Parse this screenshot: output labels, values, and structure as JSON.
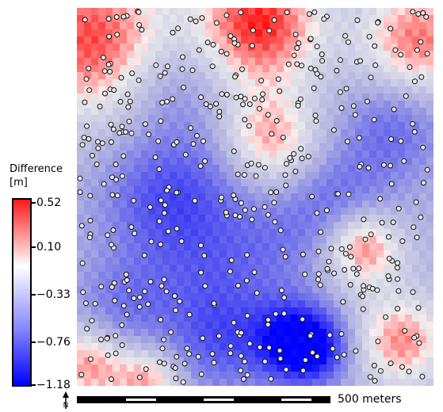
{
  "legend": {
    "title": "Difference",
    "unit": "[m]",
    "ticks": [
      {
        "label": "0.52",
        "value": 0.52
      },
      {
        "label": "0.10",
        "value": 0.1
      },
      {
        "label": "−0.33",
        "value": -0.33
      },
      {
        "label": "−0.76",
        "value": -0.76
      },
      {
        "label": "−1.18",
        "value": -1.18
      }
    ],
    "colors": {
      "max": "#ff1a1a",
      "mid": "#ffffff",
      "min": "#0000ff"
    }
  },
  "scale": {
    "label": "500 meters"
  },
  "north_arrow": {
    "icon": "north-arrow-icon"
  },
  "map": {
    "raster_type": "difference-surface",
    "points_icon": "sample-point-marker"
  }
}
